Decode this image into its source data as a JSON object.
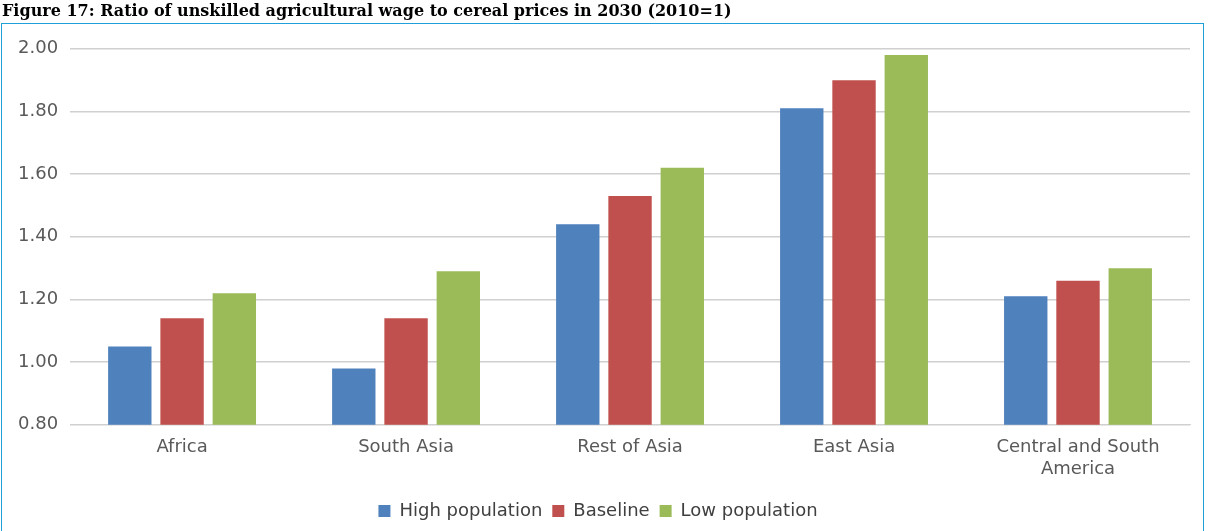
{
  "chart_data": {
    "type": "bar",
    "title": "Figure 17: Ratio of unskilled agricultural wage to cereal prices in 2030 (2010=1)",
    "categories": [
      "Africa",
      "South Asia",
      "Rest of Asia",
      "East Asia",
      "Central and South America"
    ],
    "series": [
      {
        "name": "High population",
        "color": "#4f81bd",
        "values": [
          1.05,
          0.98,
          1.44,
          1.81,
          1.21
        ]
      },
      {
        "name": "Baseline",
        "color": "#c0504d",
        "values": [
          1.14,
          1.14,
          1.53,
          1.9,
          1.26
        ]
      },
      {
        "name": "Low population",
        "color": "#9bbb59",
        "values": [
          1.22,
          1.29,
          1.62,
          1.98,
          1.3
        ]
      }
    ],
    "ylim": [
      0.8,
      2.0
    ],
    "yticks": [
      {
        "value": 0.8,
        "label": "0.80"
      },
      {
        "value": 1.0,
        "label": "1.00"
      },
      {
        "value": 1.2,
        "label": "1.20"
      },
      {
        "value": 1.4,
        "label": "1.40"
      },
      {
        "value": 1.6,
        "label": "1.60"
      },
      {
        "value": 1.8,
        "label": "1.80"
      },
      {
        "value": 2.0,
        "label": "2.00"
      }
    ],
    "grid": "y",
    "legend": "bottom"
  }
}
